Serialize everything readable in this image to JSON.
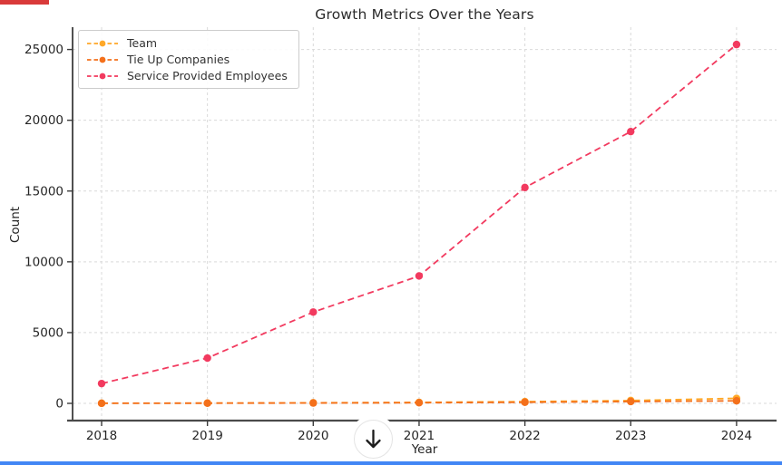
{
  "page": {
    "decorations": {
      "top_left_bar_color": "#d93a3a",
      "bottom_bar_color": "#4286f5"
    },
    "scroll_button": {
      "icon": "down-arrow",
      "glyph": "↓"
    }
  },
  "chart_data": {
    "type": "line",
    "title": "Growth Metrics Over the Years",
    "xlabel": "Year",
    "ylabel": "Count",
    "x_ticks": [
      "2018",
      "2019",
      "2020",
      "2021",
      "2022",
      "2023",
      "2024"
    ],
    "y_ticks": [
      0,
      5000,
      10000,
      15000,
      20000,
      25000
    ],
    "ylim": [
      -1300,
      26600
    ],
    "grid": true,
    "grid_style": "dashed",
    "line_style": "dashed",
    "marker": "circle",
    "legend_position": "upper-left",
    "axis_color": "#3c3c3c",
    "grid_color": "#d9d9d9",
    "series": [
      {
        "name": "Team",
        "color": "#FFA827",
        "values": [
          10,
          20,
          40,
          70,
          120,
          200,
          350
        ]
      },
      {
        "name": "Tie Up Companies",
        "color": "#F4701B",
        "values": [
          5,
          12,
          25,
          45,
          80,
          130,
          180
        ]
      },
      {
        "name": "Service Provided Employees",
        "color": "#F23A5F",
        "values": [
          1400,
          3200,
          6450,
          9000,
          15250,
          19200,
          25350
        ]
      }
    ]
  }
}
